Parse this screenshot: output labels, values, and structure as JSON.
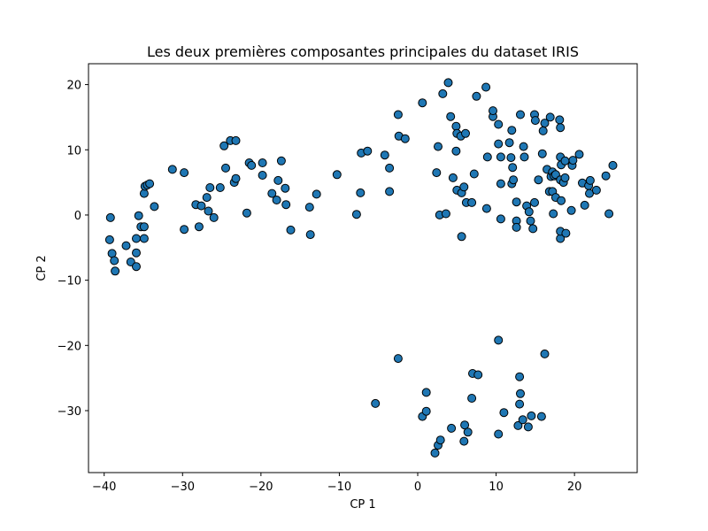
{
  "colors": {
    "marker_fill": "#1f77b4",
    "marker_edge": "#000000",
    "axes": "#000000",
    "background": "#ffffff"
  },
  "chart_data": {
    "type": "scatter",
    "title": "Les deux premières composantes principales du dataset IRIS",
    "xlabel": "CP 1",
    "ylabel": "CP 2",
    "xlim": [
      -42,
      28
    ],
    "ylim": [
      -39.5,
      23.2
    ],
    "grid": false,
    "legend": "none",
    "xticks": [
      -40,
      -30,
      -20,
      -10,
      0,
      10,
      20
    ],
    "yticks": [
      -30,
      -20,
      -10,
      0,
      10,
      20
    ],
    "xtick_labels": [
      "−40",
      "−30",
      "−20",
      "−10",
      "0",
      "10",
      "20"
    ],
    "ytick_labels": [
      "−30",
      "−20",
      "−10",
      "0",
      "10",
      "20"
    ],
    "series": [
      {
        "points": [
          [
            -39.2,
            -0.4
          ],
          [
            -39.3,
            -3.8
          ],
          [
            -39.0,
            -5.9
          ],
          [
            -38.7,
            -7.0
          ],
          [
            -38.6,
            -8.6
          ],
          [
            -37.2,
            -4.7
          ],
          [
            -36.6,
            -7.2
          ],
          [
            -35.9,
            -7.9
          ],
          [
            -35.9,
            -5.8
          ],
          [
            -35.9,
            -3.6
          ],
          [
            -35.6,
            -0.1
          ],
          [
            -35.3,
            -1.8
          ],
          [
            -34.9,
            -1.8
          ],
          [
            -34.9,
            -3.6
          ],
          [
            -34.9,
            3.3
          ],
          [
            -34.8,
            4.4
          ],
          [
            -34.5,
            4.6
          ],
          [
            -34.2,
            4.8
          ],
          [
            -33.6,
            1.3
          ],
          [
            -31.3,
            7.0
          ],
          [
            -29.8,
            6.5
          ],
          [
            -29.8,
            -2.2
          ],
          [
            -28.3,
            1.6
          ],
          [
            -27.9,
            -1.8
          ],
          [
            -27.6,
            1.4
          ],
          [
            -26.9,
            2.7
          ],
          [
            -26.7,
            0.6
          ],
          [
            -26.5,
            4.2
          ],
          [
            -26.0,
            -0.4
          ],
          [
            -25.2,
            4.2
          ],
          [
            -24.7,
            10.6
          ],
          [
            -24.5,
            7.2
          ],
          [
            -23.9,
            11.4
          ],
          [
            -23.2,
            11.4
          ],
          [
            -23.4,
            5.0
          ],
          [
            -23.2,
            5.6
          ],
          [
            -21.8,
            0.3
          ],
          [
            -21.5,
            8.0
          ],
          [
            -21.2,
            7.6
          ],
          [
            -19.8,
            6.1
          ],
          [
            -19.8,
            8.0
          ],
          [
            -18.6,
            3.3
          ],
          [
            -18.0,
            2.3
          ],
          [
            -17.8,
            5.3
          ],
          [
            -17.4,
            8.3
          ],
          [
            -16.9,
            4.1
          ],
          [
            -16.8,
            1.6
          ],
          [
            -16.2,
            -2.3
          ],
          [
            -13.8,
            1.2
          ],
          [
            -13.7,
            -3.0
          ],
          [
            -12.9,
            3.2
          ],
          [
            -10.3,
            6.2
          ],
          [
            -7.8,
            0.1
          ],
          [
            -7.3,
            3.4
          ],
          [
            -7.2,
            9.5
          ],
          [
            -6.4,
            9.8
          ],
          [
            -4.2,
            9.2
          ],
          [
            -3.6,
            7.2
          ],
          [
            -3.6,
            3.6
          ],
          [
            -2.5,
            15.4
          ],
          [
            -2.4,
            12.1
          ],
          [
            -1.6,
            11.7
          ],
          [
            0.6,
            17.2
          ],
          [
            2.4,
            6.5
          ],
          [
            2.6,
            10.5
          ],
          [
            2.8,
            0.0
          ],
          [
            3.2,
            18.6
          ],
          [
            3.6,
            0.2
          ],
          [
            3.9,
            20.3
          ],
          [
            4.2,
            15.1
          ],
          [
            4.5,
            5.7
          ],
          [
            4.9,
            13.6
          ],
          [
            5.0,
            12.5
          ],
          [
            4.9,
            9.8
          ],
          [
            5.0,
            3.8
          ],
          [
            5.5,
            12.1
          ],
          [
            5.6,
            3.4
          ],
          [
            5.6,
            -3.3
          ],
          [
            5.9,
            4.3
          ],
          [
            6.1,
            12.5
          ],
          [
            6.2,
            1.9
          ],
          [
            6.9,
            1.9
          ],
          [
            7.2,
            6.3
          ],
          [
            7.5,
            18.2
          ],
          [
            8.7,
            19.6
          ],
          [
            8.8,
            1.0
          ],
          [
            8.9,
            8.9
          ],
          [
            9.6,
            15.1
          ],
          [
            9.6,
            16.0
          ],
          [
            10.3,
            13.9
          ],
          [
            10.3,
            10.9
          ],
          [
            10.6,
            8.9
          ],
          [
            10.6,
            4.8
          ],
          [
            10.6,
            -0.6
          ],
          [
            11.7,
            11.1
          ],
          [
            11.9,
            8.8
          ],
          [
            12.0,
            13.0
          ],
          [
            12.1,
            7.3
          ],
          [
            12.0,
            4.8
          ],
          [
            12.2,
            5.4
          ],
          [
            12.6,
            2.0
          ],
          [
            12.6,
            -0.9
          ],
          [
            12.6,
            -1.9
          ],
          [
            13.1,
            15.4
          ],
          [
            13.5,
            10.5
          ],
          [
            13.6,
            8.9
          ],
          [
            13.9,
            1.4
          ],
          [
            14.2,
            0.5
          ],
          [
            14.4,
            -0.9
          ],
          [
            14.7,
            -2.1
          ],
          [
            14.9,
            1.9
          ],
          [
            14.9,
            15.4
          ],
          [
            15.0,
            14.5
          ],
          [
            15.4,
            5.4
          ],
          [
            15.9,
            9.4
          ],
          [
            16.0,
            12.9
          ],
          [
            16.2,
            14.1
          ],
          [
            16.5,
            7.0
          ],
          [
            16.8,
            3.6
          ],
          [
            16.9,
            15.0
          ],
          [
            17.0,
            5.9
          ],
          [
            17.2,
            3.6
          ],
          [
            17.2,
            6.6
          ],
          [
            17.3,
            0.2
          ],
          [
            17.4,
            6.0
          ],
          [
            17.6,
            2.7
          ],
          [
            17.6,
            6.2
          ],
          [
            18.1,
            14.6
          ],
          [
            18.2,
            13.4
          ],
          [
            18.2,
            8.9
          ],
          [
            18.2,
            5.4
          ],
          [
            18.3,
            2.2
          ],
          [
            18.2,
            -3.6
          ],
          [
            18.2,
            -2.5
          ],
          [
            18.3,
            7.7
          ],
          [
            18.6,
            5.0
          ],
          [
            18.8,
            5.7
          ],
          [
            18.8,
            8.3
          ],
          [
            18.9,
            -2.8
          ],
          [
            19.6,
            0.7
          ],
          [
            19.7,
            7.6
          ],
          [
            19.8,
            8.4
          ],
          [
            20.6,
            9.3
          ],
          [
            21.0,
            4.9
          ],
          [
            21.3,
            1.5
          ],
          [
            21.8,
            4.5
          ],
          [
            21.9,
            3.3
          ],
          [
            22.0,
            5.3
          ],
          [
            22.8,
            3.8
          ],
          [
            24.0,
            6.0
          ],
          [
            24.4,
            0.2
          ],
          [
            24.9,
            7.6
          ],
          [
            -2.5,
            -22.0
          ],
          [
            -5.4,
            -28.9
          ],
          [
            0.6,
            -30.9
          ],
          [
            1.1,
            -27.2
          ],
          [
            1.1,
            -30.1
          ],
          [
            2.2,
            -36.5
          ],
          [
            2.6,
            -35.3
          ],
          [
            2.9,
            -34.5
          ],
          [
            4.3,
            -32.7
          ],
          [
            5.9,
            -34.7
          ],
          [
            6.0,
            -32.2
          ],
          [
            6.4,
            -33.3
          ],
          [
            6.9,
            -28.1
          ],
          [
            7.0,
            -24.3
          ],
          [
            7.7,
            -24.5
          ],
          [
            10.3,
            -19.2
          ],
          [
            10.3,
            -33.6
          ],
          [
            11.0,
            -30.3
          ],
          [
            12.8,
            -32.3
          ],
          [
            13.0,
            -24.8
          ],
          [
            13.0,
            -29.0
          ],
          [
            13.1,
            -27.4
          ],
          [
            13.4,
            -31.4
          ],
          [
            14.1,
            -32.5
          ],
          [
            14.5,
            -30.8
          ],
          [
            15.8,
            -30.9
          ],
          [
            16.2,
            -21.3
          ]
        ]
      }
    ]
  }
}
